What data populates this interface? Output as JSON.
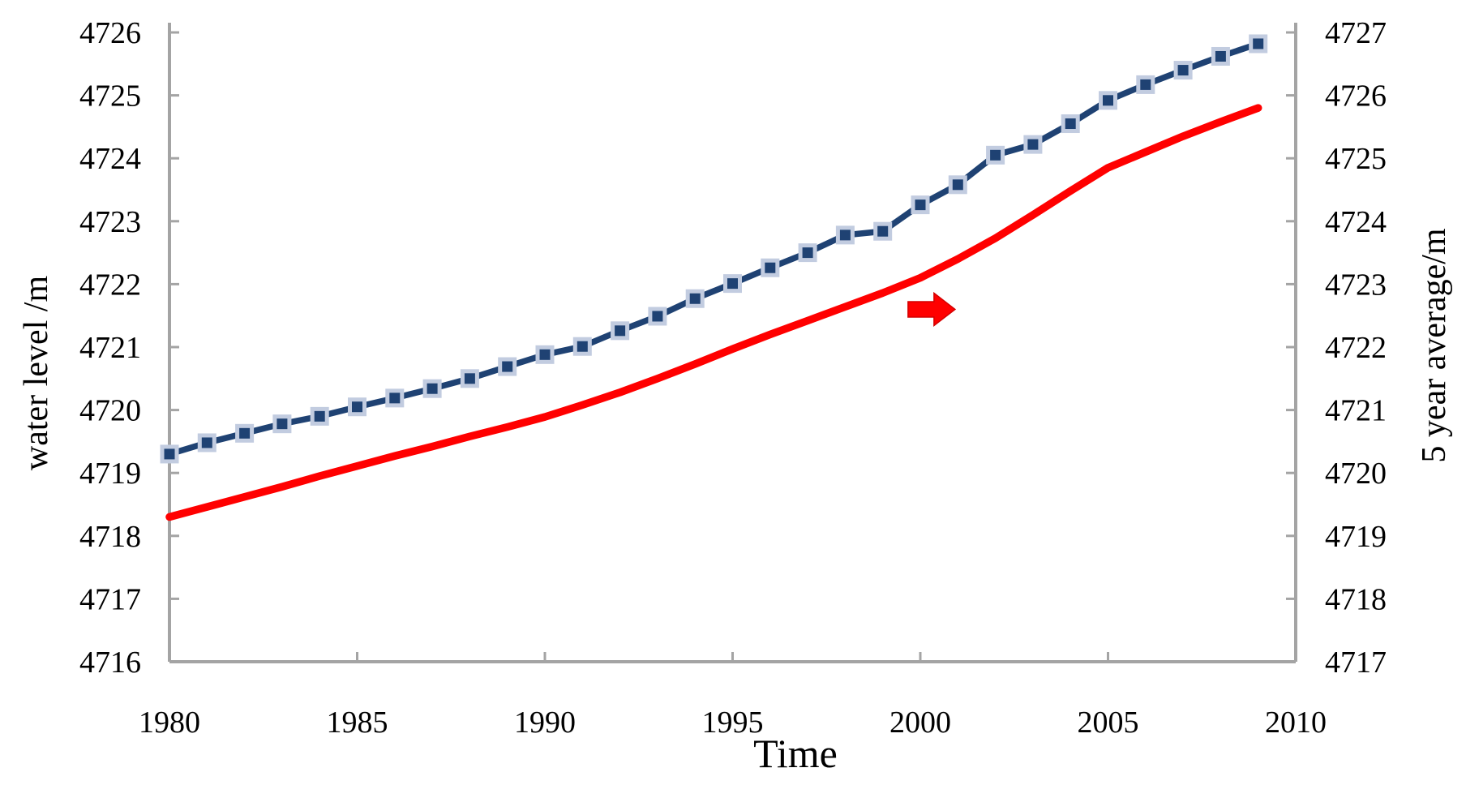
{
  "chart_data": {
    "type": "line",
    "title": "",
    "xlabel": "Time",
    "ylabel_left": "water level /m",
    "ylabel_right": "5 year average/m",
    "x": [
      1980,
      1981,
      1982,
      1983,
      1984,
      1985,
      1986,
      1987,
      1988,
      1989,
      1990,
      1991,
      1992,
      1993,
      1994,
      1995,
      1996,
      1997,
      1998,
      1999,
      2000,
      2001,
      2002,
      2003,
      2004,
      2005,
      2006,
      2007,
      2008,
      2009
    ],
    "series": [
      {
        "name": "water level",
        "axis": "left",
        "color": "#1F4273",
        "marker": "square",
        "marker_fill": "#1F4273",
        "marker_border": "#C2CCE0",
        "values": [
          4719.3,
          4719.48,
          4719.63,
          4719.78,
          4719.9,
          4720.05,
          4720.19,
          4720.34,
          4720.5,
          4720.69,
          4720.88,
          4721.01,
          4721.26,
          4721.49,
          4721.77,
          4722.01,
          4722.26,
          4722.5,
          4722.78,
          4722.84,
          4723.26,
          4723.58,
          4724.05,
          4724.22,
          4724.55,
          4724.92,
          4725.17,
          4725.4,
          4725.62,
          4725.82
        ]
      },
      {
        "name": "5 year average",
        "axis": "right",
        "color": "#FF0000",
        "marker": "none",
        "values": [
          4719.3,
          4719.46,
          4719.62,
          4719.78,
          4719.95,
          4720.11,
          4720.27,
          4720.42,
          4720.58,
          4720.73,
          4720.89,
          4721.08,
          4721.28,
          4721.5,
          4721.73,
          4721.97,
          4722.2,
          4722.42,
          4722.64,
          4722.86,
          4723.1,
          4723.4,
          4723.73,
          4724.1,
          4724.48,
          4724.85,
          4725.1,
          4725.35,
          4725.58,
          4725.8
        ]
      }
    ],
    "x_ticks": [
      1980,
      1985,
      1990,
      1995,
      2000,
      2005,
      2010
    ],
    "y_left_ticks": [
      4716,
      4717,
      4718,
      4719,
      4720,
      4721,
      4722,
      4723,
      4724,
      4725,
      4726
    ],
    "y_right_ticks": [
      4717,
      4718,
      4719,
      4720,
      4721,
      4722,
      4723,
      4724,
      4725,
      4726,
      4727
    ],
    "x_range": [
      1980,
      2010
    ],
    "y_left_range": [
      4716,
      4726
    ],
    "y_right_range": [
      4717,
      4727
    ],
    "grid": false,
    "legend": "none",
    "axis_color": "#A4A4A4",
    "text_color": "#000000",
    "annotation": {
      "type": "right-arrow",
      "color": "#FF0000",
      "x_year": 2000.3,
      "y_left_value": 4721.6,
      "width": 58,
      "height": 40,
      "shaft_height": 19
    }
  }
}
